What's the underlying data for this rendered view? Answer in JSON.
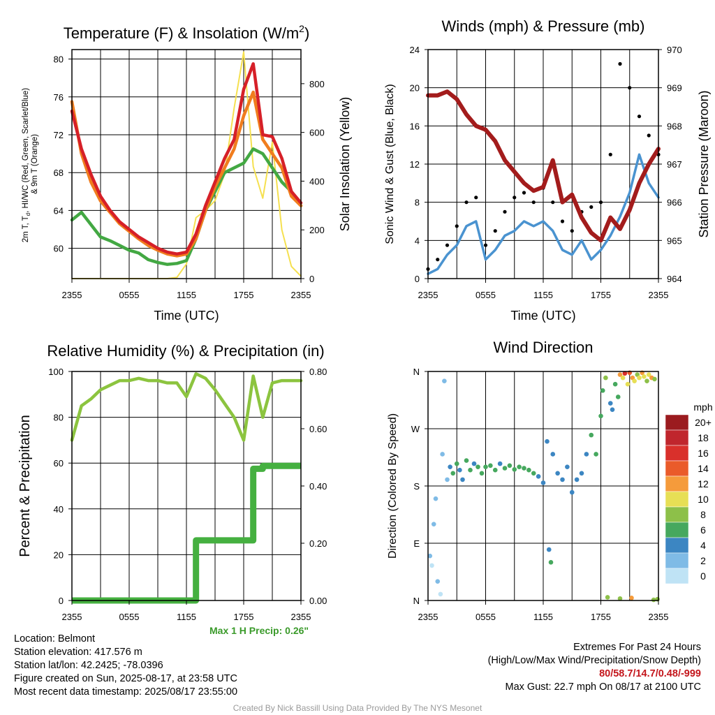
{
  "panels": {
    "temp": {
      "title": "Temperature (F) & Insolation (W/m",
      "title_sup": "2",
      "title_end": ")",
      "ylabel_left_lines": [
        "2m T, T",
        "d",
        ", HI/WC (Red, Green, Scarlet/Blue)",
        "& 9m T (Orange)"
      ],
      "ylabel_right": "Solar Insolation (Yellow)",
      "xlabel": "Time (UTC)"
    },
    "wind": {
      "title": "Winds (mph) & Pressure (mb)",
      "ylabel_left": "Sonic Wind & Gust (Blue, Black)",
      "ylabel_right": "Station Pressure (Maroon)",
      "xlabel": "Time (UTC)"
    },
    "rh": {
      "title": "Relative Humidity (%) & Precipitation (in)",
      "ylabel_left": "Percent & Precipitation",
      "max_precip": "Max 1 H Precip: 0.26\""
    },
    "dir": {
      "title": "Wind Direction",
      "ylabel_left": "Direction (Colored By Speed)",
      "colorbar_unit": "mph",
      "colorbar_labels": [
        "20+",
        "18",
        "16",
        "14",
        "12",
        "10",
        "8",
        "6",
        "4",
        "2",
        "0"
      ],
      "colorbar_colors": [
        "#9b1b1f",
        "#c0262d",
        "#d9302b",
        "#ea5b2a",
        "#f59b3b",
        "#e7df55",
        "#8dc049",
        "#46a85e",
        "#3c86c2",
        "#7fbbe6",
        "#bfe3f5"
      ]
    }
  },
  "info": {
    "location": "Location: Belmont",
    "elevation": "Station elevation: 417.576 m",
    "latlon": "Station lat/lon: 42.2425; -78.0396",
    "created": "Figure created on Sun, 2025-08-17, at 23:58 UTC",
    "recent": "Most recent data timestamp: 2025/08/17 23:55:00",
    "extremes_title": "Extremes For Past 24 Hours",
    "extremes_desc": "(High/Low/Max Wind/Precipitation/Snow Depth)",
    "extremes_values": "80/58.7/14.7/0.48/-999",
    "max_gust": "Max Gust: 22.7 mph On 08/17 at 2100 UTC",
    "credit": "Created By Nick Bassill Using Data Provided By The NYS Mesonet"
  },
  "chart_data": [
    {
      "type": "line",
      "title": "Temperature (F) & Insolation (W/m2)",
      "xlabel": "Time (UTC)",
      "ylabel": "2m T, Td, HI/WC (Red, Green, Scarlet/Blue) & 9m T (Orange)",
      "y2label": "Solar Insolation (Yellow)",
      "x_ticks": [
        "2355",
        "0555",
        "1155",
        "1755",
        "2355"
      ],
      "ylim": [
        56.8,
        81
      ],
      "y_ticks": [
        60,
        64,
        68,
        72,
        76,
        80
      ],
      "y2lim": [
        0,
        940
      ],
      "y2_ticks": [
        0,
        200,
        400,
        600,
        800
      ],
      "x_hours": [
        0,
        1,
        2,
        3,
        4,
        5,
        6,
        7,
        8,
        9,
        10,
        11,
        12,
        13,
        14,
        15,
        16,
        17,
        18,
        19,
        20,
        21,
        22,
        23,
        24
      ],
      "series": [
        {
          "name": "2m T",
          "color": "#d62028",
          "axis": "left",
          "values": [
            74.5,
            70.5,
            67.8,
            65.5,
            64.0,
            62.8,
            62.0,
            61.2,
            60.6,
            60.0,
            59.6,
            59.4,
            59.6,
            61.5,
            64.5,
            67.0,
            69.5,
            71.5,
            76.8,
            79.5,
            72.0,
            71.8,
            69.5,
            66.0,
            64.8
          ]
        },
        {
          "name": "9m T",
          "color": "#f07d1e",
          "axis": "left",
          "values": [
            75.5,
            70.0,
            67.0,
            65.0,
            63.8,
            62.6,
            61.8,
            61.0,
            60.3,
            59.8,
            59.4,
            59.2,
            59.4,
            61.0,
            64.0,
            66.5,
            68.5,
            70.5,
            74.0,
            76.5,
            71.5,
            70.0,
            68.5,
            65.5,
            64.5
          ]
        },
        {
          "name": "Td",
          "color": "#43a843",
          "axis": "left",
          "values": [
            63.0,
            63.8,
            62.5,
            61.2,
            60.8,
            60.3,
            59.8,
            59.5,
            58.8,
            58.5,
            58.3,
            58.4,
            58.7,
            61.0,
            64.0,
            66.0,
            68.0,
            68.5,
            69.0,
            70.5,
            70.0,
            68.5,
            67.0,
            66.0,
            64.5
          ]
        },
        {
          "name": "Solar",
          "color": "#f5e050",
          "axis": "right",
          "values": [
            0,
            0,
            0,
            0,
            0,
            0,
            0,
            0,
            0,
            0,
            0,
            5,
            60,
            250,
            280,
            320,
            430,
            700,
            930,
            460,
            330,
            560,
            200,
            50,
            10
          ]
        }
      ]
    },
    {
      "type": "line",
      "title": "Winds (mph) & Pressure (mb)",
      "xlabel": "Time (UTC)",
      "ylabel": "Sonic Wind & Gust (Blue, Black)",
      "y2label": "Station Pressure (Maroon)",
      "x_ticks": [
        "2355",
        "0555",
        "1155",
        "1755",
        "2355"
      ],
      "ylim": [
        0,
        24
      ],
      "y_ticks": [
        0,
        4,
        8,
        12,
        16,
        20,
        24
      ],
      "y2lim": [
        964,
        970
      ],
      "y2_ticks": [
        964,
        965,
        966,
        967,
        968,
        969,
        970
      ],
      "x_hours": [
        0,
        1,
        2,
        3,
        4,
        5,
        6,
        7,
        8,
        9,
        10,
        11,
        12,
        13,
        14,
        15,
        16,
        17,
        18,
        19,
        20,
        21,
        22,
        23,
        24
      ],
      "series": [
        {
          "name": "Sonic Wind",
          "color": "#4a93d0",
          "axis": "left",
          "values": [
            0.5,
            1.0,
            2.5,
            3.5,
            5.5,
            6.0,
            2.0,
            3.0,
            4.5,
            5.0,
            6.0,
            5.5,
            6.0,
            5.0,
            3.0,
            2.5,
            4.0,
            2.0,
            3.0,
            4.5,
            6.5,
            9.0,
            13.0,
            10.0,
            8.5
          ]
        },
        {
          "name": "Gust",
          "color": "#000000",
          "axis": "left",
          "values": [
            1.0,
            2.0,
            3.5,
            5.5,
            8.0,
            8.5,
            3.5,
            5.0,
            7.0,
            8.5,
            9.0,
            8.0,
            9.5,
            8.0,
            6.0,
            5.0,
            7.0,
            7.5,
            8.0,
            13.0,
            22.5,
            20.0,
            17.0,
            15.0,
            13.0
          ]
        },
        {
          "name": "Station Pressure",
          "color": "#a31c1c",
          "axis": "right",
          "values": [
            968.8,
            968.8,
            968.9,
            968.7,
            968.3,
            968.0,
            967.9,
            967.6,
            967.1,
            966.8,
            966.5,
            966.3,
            966.4,
            967.1,
            966.0,
            966.2,
            965.6,
            965.2,
            965.0,
            965.6,
            965.3,
            965.8,
            966.5,
            967.0,
            967.4
          ]
        }
      ]
    },
    {
      "type": "line",
      "title": "Relative Humidity (%) & Precipitation (in)",
      "ylabel": "Percent & Precipitation",
      "x_ticks": [
        "2355",
        "0555",
        "1155",
        "1755",
        "2355"
      ],
      "ylim": [
        0,
        100
      ],
      "y_ticks": [
        0,
        20,
        40,
        60,
        80,
        100
      ],
      "y2lim": [
        0,
        0.8
      ],
      "y2_ticks": [
        "0.00",
        "0.20",
        "0.40",
        "0.60",
        "0.80"
      ],
      "x_hours": [
        0,
        1,
        2,
        3,
        4,
        5,
        6,
        7,
        8,
        9,
        10,
        11,
        12,
        13,
        14,
        15,
        16,
        17,
        18,
        19,
        20,
        21,
        22,
        23,
        24
      ],
      "series": [
        {
          "name": "Relative Humidity",
          "color": "#8cc43f",
          "axis": "left",
          "values": [
            70,
            85,
            88,
            92,
            94,
            96,
            96,
            97,
            96,
            96,
            95,
            95,
            89,
            99,
            97,
            92,
            86,
            80,
            70,
            98,
            80,
            95,
            96,
            96,
            96
          ]
        },
        {
          "name": "Precipitation",
          "color": "#45b040",
          "axis": "right",
          "values": [
            0,
            0,
            0,
            0,
            0,
            0,
            0,
            0,
            0,
            0,
            0,
            0,
            0,
            0.21,
            0.21,
            0.21,
            0.21,
            0.21,
            0.21,
            0.46,
            0.47,
            0.47,
            0.47,
            0.47,
            0.47
          ]
        }
      ]
    },
    {
      "type": "scatter",
      "title": "Wind Direction",
      "ylabel": "Direction (Colored By Speed)",
      "x_ticks": [
        "2355",
        "0555",
        "1155",
        "1755",
        "2355"
      ],
      "y_ticks": [
        "N",
        "E",
        "S",
        "W",
        "N"
      ],
      "ylim": [
        0,
        360
      ],
      "colorbar_label": "mph",
      "points": [
        {
          "x": 0.2,
          "y": 70,
          "mph": 1
        },
        {
          "x": 0.4,
          "y": 55,
          "mph": 0
        },
        {
          "x": 0.6,
          "y": 120,
          "mph": 1
        },
        {
          "x": 0.8,
          "y": 160,
          "mph": 2
        },
        {
          "x": 1.0,
          "y": 30,
          "mph": 1
        },
        {
          "x": 1.3,
          "y": 10,
          "mph": 0
        },
        {
          "x": 1.5,
          "y": 230,
          "mph": 2
        },
        {
          "x": 1.7,
          "y": 345,
          "mph": 1
        },
        {
          "x": 2.0,
          "y": 190,
          "mph": 2
        },
        {
          "x": 2.3,
          "y": 210,
          "mph": 3
        },
        {
          "x": 2.6,
          "y": 200,
          "mph": 5
        },
        {
          "x": 3.0,
          "y": 215,
          "mph": 6
        },
        {
          "x": 3.3,
          "y": 205,
          "mph": 4
        },
        {
          "x": 3.6,
          "y": 190,
          "mph": 3
        },
        {
          "x": 4.0,
          "y": 220,
          "mph": 5
        },
        {
          "x": 4.4,
          "y": 205,
          "mph": 6
        },
        {
          "x": 4.8,
          "y": 215,
          "mph": 4
        },
        {
          "x": 5.2,
          "y": 210,
          "mph": 6
        },
        {
          "x": 5.6,
          "y": 200,
          "mph": 5
        },
        {
          "x": 6.0,
          "y": 210,
          "mph": 6
        },
        {
          "x": 6.5,
          "y": 212,
          "mph": 5
        },
        {
          "x": 7.0,
          "y": 205,
          "mph": 6
        },
        {
          "x": 7.5,
          "y": 215,
          "mph": 4
        },
        {
          "x": 8.0,
          "y": 208,
          "mph": 5
        },
        {
          "x": 8.5,
          "y": 212,
          "mph": 6
        },
        {
          "x": 9.0,
          "y": 206,
          "mph": 5
        },
        {
          "x": 9.5,
          "y": 210,
          "mph": 6
        },
        {
          "x": 10.0,
          "y": 208,
          "mph": 6
        },
        {
          "x": 10.5,
          "y": 205,
          "mph": 5
        },
        {
          "x": 11.0,
          "y": 200,
          "mph": 6
        },
        {
          "x": 11.5,
          "y": 195,
          "mph": 4
        },
        {
          "x": 12.0,
          "y": 185,
          "mph": 3
        },
        {
          "x": 12.4,
          "y": 250,
          "mph": 4
        },
        {
          "x": 12.6,
          "y": 80,
          "mph": 4
        },
        {
          "x": 12.8,
          "y": 60,
          "mph": 6
        },
        {
          "x": 13.0,
          "y": 230,
          "mph": 3
        },
        {
          "x": 13.5,
          "y": 200,
          "mph": 4
        },
        {
          "x": 14.0,
          "y": 190,
          "mph": 3
        },
        {
          "x": 14.5,
          "y": 210,
          "mph": 4
        },
        {
          "x": 15.0,
          "y": 170,
          "mph": 4
        },
        {
          "x": 15.5,
          "y": 190,
          "mph": 3
        },
        {
          "x": 16.0,
          "y": 200,
          "mph": 4
        },
        {
          "x": 16.5,
          "y": 230,
          "mph": 4
        },
        {
          "x": 17.0,
          "y": 260,
          "mph": 5
        },
        {
          "x": 17.5,
          "y": 230,
          "mph": 5
        },
        {
          "x": 18.0,
          "y": 290,
          "mph": 5
        },
        {
          "x": 18.2,
          "y": 330,
          "mph": 6
        },
        {
          "x": 18.5,
          "y": 350,
          "mph": 8
        },
        {
          "x": 18.7,
          "y": 5,
          "mph": 7
        },
        {
          "x": 19.0,
          "y": 310,
          "mph": 4
        },
        {
          "x": 19.2,
          "y": 300,
          "mph": 3
        },
        {
          "x": 19.5,
          "y": 340,
          "mph": 6
        },
        {
          "x": 19.8,
          "y": 320,
          "mph": 5
        },
        {
          "x": 20.0,
          "y": 355,
          "mph": 11
        },
        {
          "x": 20.3,
          "y": 350,
          "mph": 10
        },
        {
          "x": 20.5,
          "y": 357,
          "mph": 15
        },
        {
          "x": 20.8,
          "y": 340,
          "mph": 9
        },
        {
          "x": 21.0,
          "y": 358,
          "mph": 14
        },
        {
          "x": 21.3,
          "y": 350,
          "mph": 12
        },
        {
          "x": 21.5,
          "y": 345,
          "mph": 10
        },
        {
          "x": 21.8,
          "y": 355,
          "mph": 8
        },
        {
          "x": 22.0,
          "y": 350,
          "mph": 9
        },
        {
          "x": 22.3,
          "y": 358,
          "mph": 11
        },
        {
          "x": 22.5,
          "y": 352,
          "mph": 10
        },
        {
          "x": 22.8,
          "y": 345,
          "mph": 8
        },
        {
          "x": 23.0,
          "y": 355,
          "mph": 9
        },
        {
          "x": 23.3,
          "y": 350,
          "mph": 11
        },
        {
          "x": 23.6,
          "y": 348,
          "mph": 8
        },
        {
          "x": 23.9,
          "y": 2,
          "mph": 7
        },
        {
          "x": 20.0,
          "y": 3,
          "mph": 7
        },
        {
          "x": 21.2,
          "y": 4,
          "mph": 12
        },
        {
          "x": 23.5,
          "y": 1,
          "mph": 7
        }
      ]
    }
  ]
}
